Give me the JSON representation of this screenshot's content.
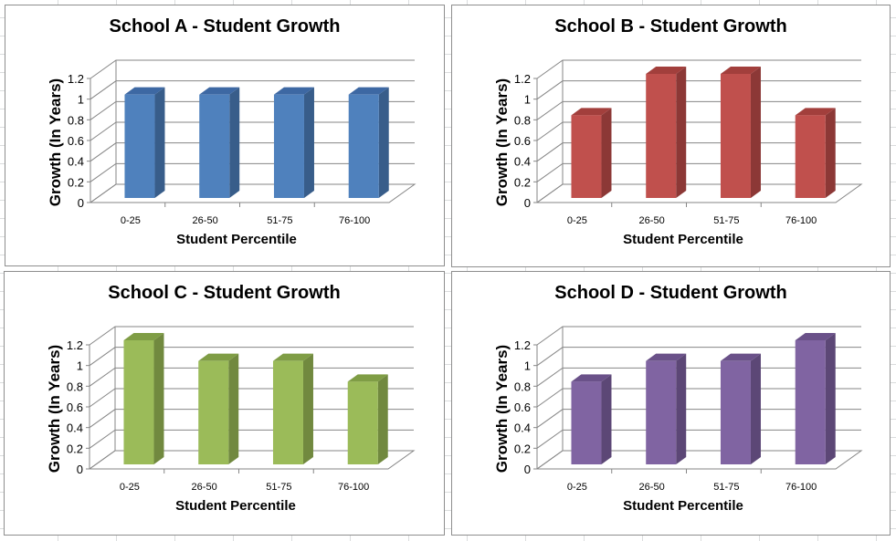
{
  "chart_data": [
    {
      "type": "bar",
      "title": "School A - Student Growth",
      "xlabel": "Student Percentile",
      "ylabel": "Growth  (In Years)",
      "categories": [
        "0-25",
        "26-50",
        "51-75",
        "76-100"
      ],
      "values": [
        1,
        1,
        1,
        1
      ],
      "ylim": [
        0,
        1.2
      ],
      "yticks": [
        "0",
        "0.2",
        "0.4",
        "0.6",
        "0.8",
        "1",
        "1.2"
      ],
      "grid": true,
      "color": "#4f81bd",
      "side_color": "#385d8a",
      "top_color": "#3d68a3"
    },
    {
      "type": "bar",
      "title": "School B - Student Growth",
      "xlabel": "Student Percentile",
      "ylabel": "Growth  (In Years)",
      "categories": [
        "0-25",
        "26-50",
        "51-75",
        "76-100"
      ],
      "values": [
        0.8,
        1.2,
        1.2,
        0.8
      ],
      "ylim": [
        0,
        1.2
      ],
      "yticks": [
        "0",
        "0.2",
        "0.4",
        "0.6",
        "0.8",
        "1",
        "1.2"
      ],
      "grid": true,
      "color": "#c0504d",
      "side_color": "#8c3836",
      "top_color": "#a23f3c"
    },
    {
      "type": "bar",
      "title": "School C - Student Growth",
      "xlabel": "Student Percentile",
      "ylabel": "Growth  (In Years)",
      "categories": [
        "0-25",
        "26-50",
        "51-75",
        "76-100"
      ],
      "values": [
        1.2,
        1,
        1,
        0.8
      ],
      "ylim": [
        0,
        1.2
      ],
      "yticks": [
        "0",
        "0.2",
        "0.4",
        "0.6",
        "0.8",
        "1",
        "1.2"
      ],
      "grid": true,
      "color": "#9bbb59",
      "side_color": "#71893f",
      "top_color": "#7f9d45"
    },
    {
      "type": "bar",
      "title": "School D - Student Growth",
      "xlabel": "Student Percentile",
      "ylabel": "Growth  (In Years)",
      "categories": [
        "0-25",
        "26-50",
        "51-75",
        "76-100"
      ],
      "values": [
        0.8,
        1,
        1,
        1.2
      ],
      "ylim": [
        0,
        1.2
      ],
      "yticks": [
        "0",
        "0.2",
        "0.4",
        "0.6",
        "0.8",
        "1",
        "1.2"
      ],
      "grid": true,
      "color": "#8064a2",
      "side_color": "#5c4776",
      "top_color": "#6a5189"
    }
  ]
}
